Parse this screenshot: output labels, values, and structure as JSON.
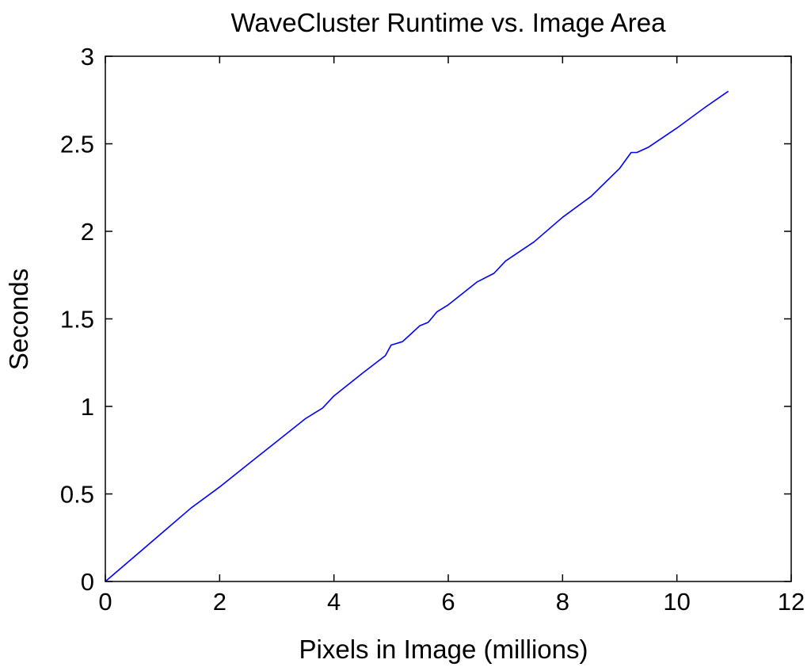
{
  "chart_data": {
    "type": "line",
    "title": "WaveCluster Runtime vs. Image Area",
    "xlabel": "Pixels in Image (millions)",
    "ylabel": "Seconds",
    "xlim": [
      0,
      12
    ],
    "ylim": [
      0,
      3
    ],
    "xticks": [
      0,
      2,
      4,
      6,
      8,
      10,
      12
    ],
    "yticks": [
      0,
      0.5,
      1,
      1.5,
      2,
      2.5,
      3
    ],
    "xtick_labels": [
      "0",
      "2",
      "4",
      "6",
      "8",
      "10",
      "12"
    ],
    "ytick_labels": [
      "0",
      "0.5",
      "1",
      "1.5",
      "2",
      "2.5",
      "3"
    ],
    "grid": false,
    "series": [
      {
        "color": "#0000ff",
        "x": [
          0,
          0.5,
          1.0,
          1.5,
          2.0,
          2.5,
          3.0,
          3.5,
          3.65,
          3.8,
          4.0,
          4.5,
          4.9,
          5.0,
          5.2,
          5.3,
          5.5,
          5.65,
          5.8,
          6.0,
          6.5,
          6.8,
          7.0,
          7.5,
          8.0,
          8.5,
          9.0,
          9.2,
          9.3,
          9.5,
          10.0,
          10.5,
          10.9
        ],
        "y": [
          0,
          0.14,
          0.28,
          0.42,
          0.54,
          0.67,
          0.8,
          0.93,
          0.96,
          0.99,
          1.06,
          1.19,
          1.29,
          1.35,
          1.37,
          1.4,
          1.46,
          1.48,
          1.54,
          1.58,
          1.71,
          1.76,
          1.83,
          1.94,
          2.08,
          2.2,
          2.36,
          2.45,
          2.45,
          2.48,
          2.59,
          2.71,
          2.8
        ]
      }
    ]
  }
}
